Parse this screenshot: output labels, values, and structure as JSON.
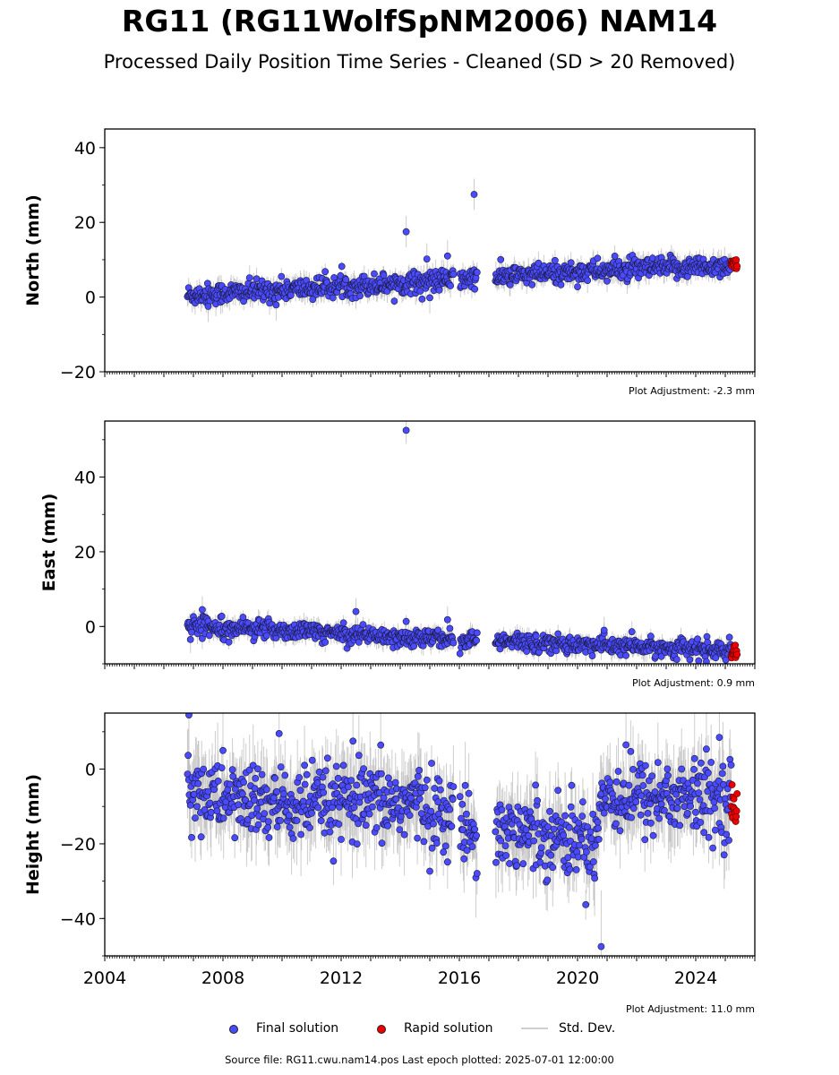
{
  "title": "RG11 (RG11WolfSpNM2006) NAM14",
  "subtitle": "Processed Daily Position Time Series - Cleaned (SD > 20 Removed)",
  "source_note": "Source file: RG11.cwu.nam14.pos  Last epoch plotted: 2025-07-01 12:00:00",
  "legend": {
    "final": "Final solution",
    "rapid": "Rapid solution",
    "std": "Std. Dev."
  },
  "colors": {
    "final": "#4a4aff",
    "rapid": "#ee0000",
    "std": "#b8b8b8",
    "edge": "#1a1a3a"
  },
  "chart_data": [
    {
      "type": "scatter",
      "ylabel": "North (mm)",
      "xlim": [
        2004,
        2026
      ],
      "ylim": [
        -20,
        45
      ],
      "yticks": [
        -20,
        0,
        20,
        40
      ],
      "xticks": [
        2004,
        2008,
        2012,
        2016,
        2020,
        2024
      ],
      "adjustment": "Plot Adjustment: -2.3 mm",
      "trend": [
        [
          2006.8,
          0.5
        ],
        [
          2014.5,
          4.0
        ],
        [
          2020.5,
          7.0
        ],
        [
          2025.3,
          8.5
        ]
      ],
      "scatter_sd": 1.4,
      "gaps": [
        [
          2015.8,
          2016.0
        ],
        [
          2016.6,
          2017.2
        ]
      ],
      "outliers": [
        [
          2014.2,
          17.5
        ],
        [
          2016.5,
          27.5
        ],
        [
          2015.6,
          11.0
        ],
        [
          2014.9,
          10.2
        ],
        [
          2009.8,
          -2.1
        ],
        [
          2007.5,
          -2.5
        ],
        [
          2015.0,
          -0.2
        ]
      ],
      "rapid_range": [
        2025.2,
        2025.4
      ],
      "rapid_values": [
        7.5,
        10.0
      ]
    },
    {
      "type": "scatter",
      "ylabel": "East (mm)",
      "xlim": [
        2004,
        2026
      ],
      "ylim": [
        -10,
        55
      ],
      "yticks": [
        0,
        20,
        40
      ],
      "xticks": [
        2004,
        2008,
        2012,
        2016,
        2020,
        2024
      ],
      "adjustment": "Plot Adjustment: 0.9 mm",
      "trend": [
        [
          2006.8,
          0.5
        ],
        [
          2014.5,
          -3.0
        ],
        [
          2020.5,
          -5.0
        ],
        [
          2025.3,
          -6.5
        ]
      ],
      "scatter_sd": 1.2,
      "gaps": [
        [
          2015.8,
          2016.0
        ],
        [
          2016.6,
          2017.2
        ]
      ],
      "outliers": [
        [
          2014.2,
          52.5
        ],
        [
          2012.5,
          4.0
        ],
        [
          2015.6,
          1.8
        ],
        [
          2007.3,
          4.5
        ],
        [
          2020.9,
          -1.0
        ],
        [
          2006.9,
          -3.5
        ]
      ],
      "rapid_range": [
        2025.2,
        2025.4
      ],
      "rapid_values": [
        -8.5,
        -5.0
      ]
    },
    {
      "type": "scatter",
      "ylabel": "Height (mm)",
      "xlim": [
        2004,
        2026
      ],
      "ylim": [
        -50,
        15
      ],
      "yticks": [
        -40,
        -20,
        0
      ],
      "xticks": [
        2004,
        2008,
        2012,
        2016,
        2020,
        2024
      ],
      "xticklabels": [
        "2004",
        "2008",
        "2012",
        "2016",
        "2020",
        "2024"
      ],
      "adjustment": "Plot Adjustment: 11.0 mm",
      "trend": [
        [
          2006.8,
          -6.0
        ],
        [
          2010.0,
          -10.0
        ],
        [
          2014.5,
          -9.0
        ],
        [
          2016.5,
          -16.0
        ],
        [
          2019.0,
          -17.0
        ],
        [
          2020.6,
          -20.0
        ],
        [
          2020.8,
          -7.0
        ],
        [
          2025.3,
          -8.0
        ]
      ],
      "scatter_sd": 5.0,
      "gaps": [
        [
          2015.8,
          2016.0
        ],
        [
          2016.6,
          2017.2
        ]
      ],
      "outliers": [
        [
          2006.85,
          14.5
        ],
        [
          2020.8,
          -47.5
        ],
        [
          2009.9,
          9.5
        ],
        [
          2012.4,
          7.5
        ],
        [
          2024.8,
          8.5
        ]
      ],
      "rapid_range": [
        2025.2,
        2025.4
      ],
      "rapid_values": [
        -15.5,
        -4.0
      ]
    }
  ]
}
